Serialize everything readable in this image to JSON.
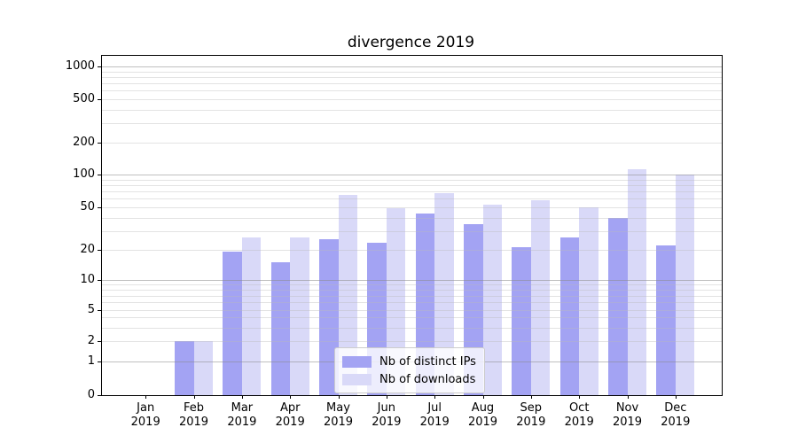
{
  "chart_data": {
    "type": "bar",
    "title": "divergence 2019",
    "categories": [
      {
        "label": "Jan",
        "sub": "2019"
      },
      {
        "label": "Feb",
        "sub": "2019"
      },
      {
        "label": "Mar",
        "sub": "2019"
      },
      {
        "label": "Apr",
        "sub": "2019"
      },
      {
        "label": "May",
        "sub": "2019"
      },
      {
        "label": "Jun",
        "sub": "2019"
      },
      {
        "label": "Jul",
        "sub": "2019"
      },
      {
        "label": "Aug",
        "sub": "2019"
      },
      {
        "label": "Sep",
        "sub": "2019"
      },
      {
        "label": "Oct",
        "sub": "2019"
      },
      {
        "label": "Nov",
        "sub": "2019"
      },
      {
        "label": "Dec",
        "sub": "2019"
      }
    ],
    "series": [
      {
        "name": "Nb of distinct IPs",
        "color": "#a3a3f3",
        "values": [
          0,
          2,
          19,
          15,
          25,
          23,
          44,
          35,
          21,
          26,
          40,
          22
        ]
      },
      {
        "name": "Nb of downloads",
        "color": "#d9d9f8",
        "values": [
          0,
          2,
          26,
          26,
          65,
          49,
          67,
          53,
          58,
          50,
          112,
          100
        ]
      }
    ],
    "yscale": "symlog",
    "yticks": [
      1000,
      500,
      200,
      100,
      50,
      20,
      10,
      5,
      2,
      1,
      0
    ],
    "ylim": [
      0,
      1250
    ],
    "grid": "horizontal major+minor",
    "legend_position": "lower center",
    "colors": {
      "major_grid": "#bdbdbd",
      "minor_grid": "#e6e6e6",
      "spine": "#000000"
    }
  }
}
